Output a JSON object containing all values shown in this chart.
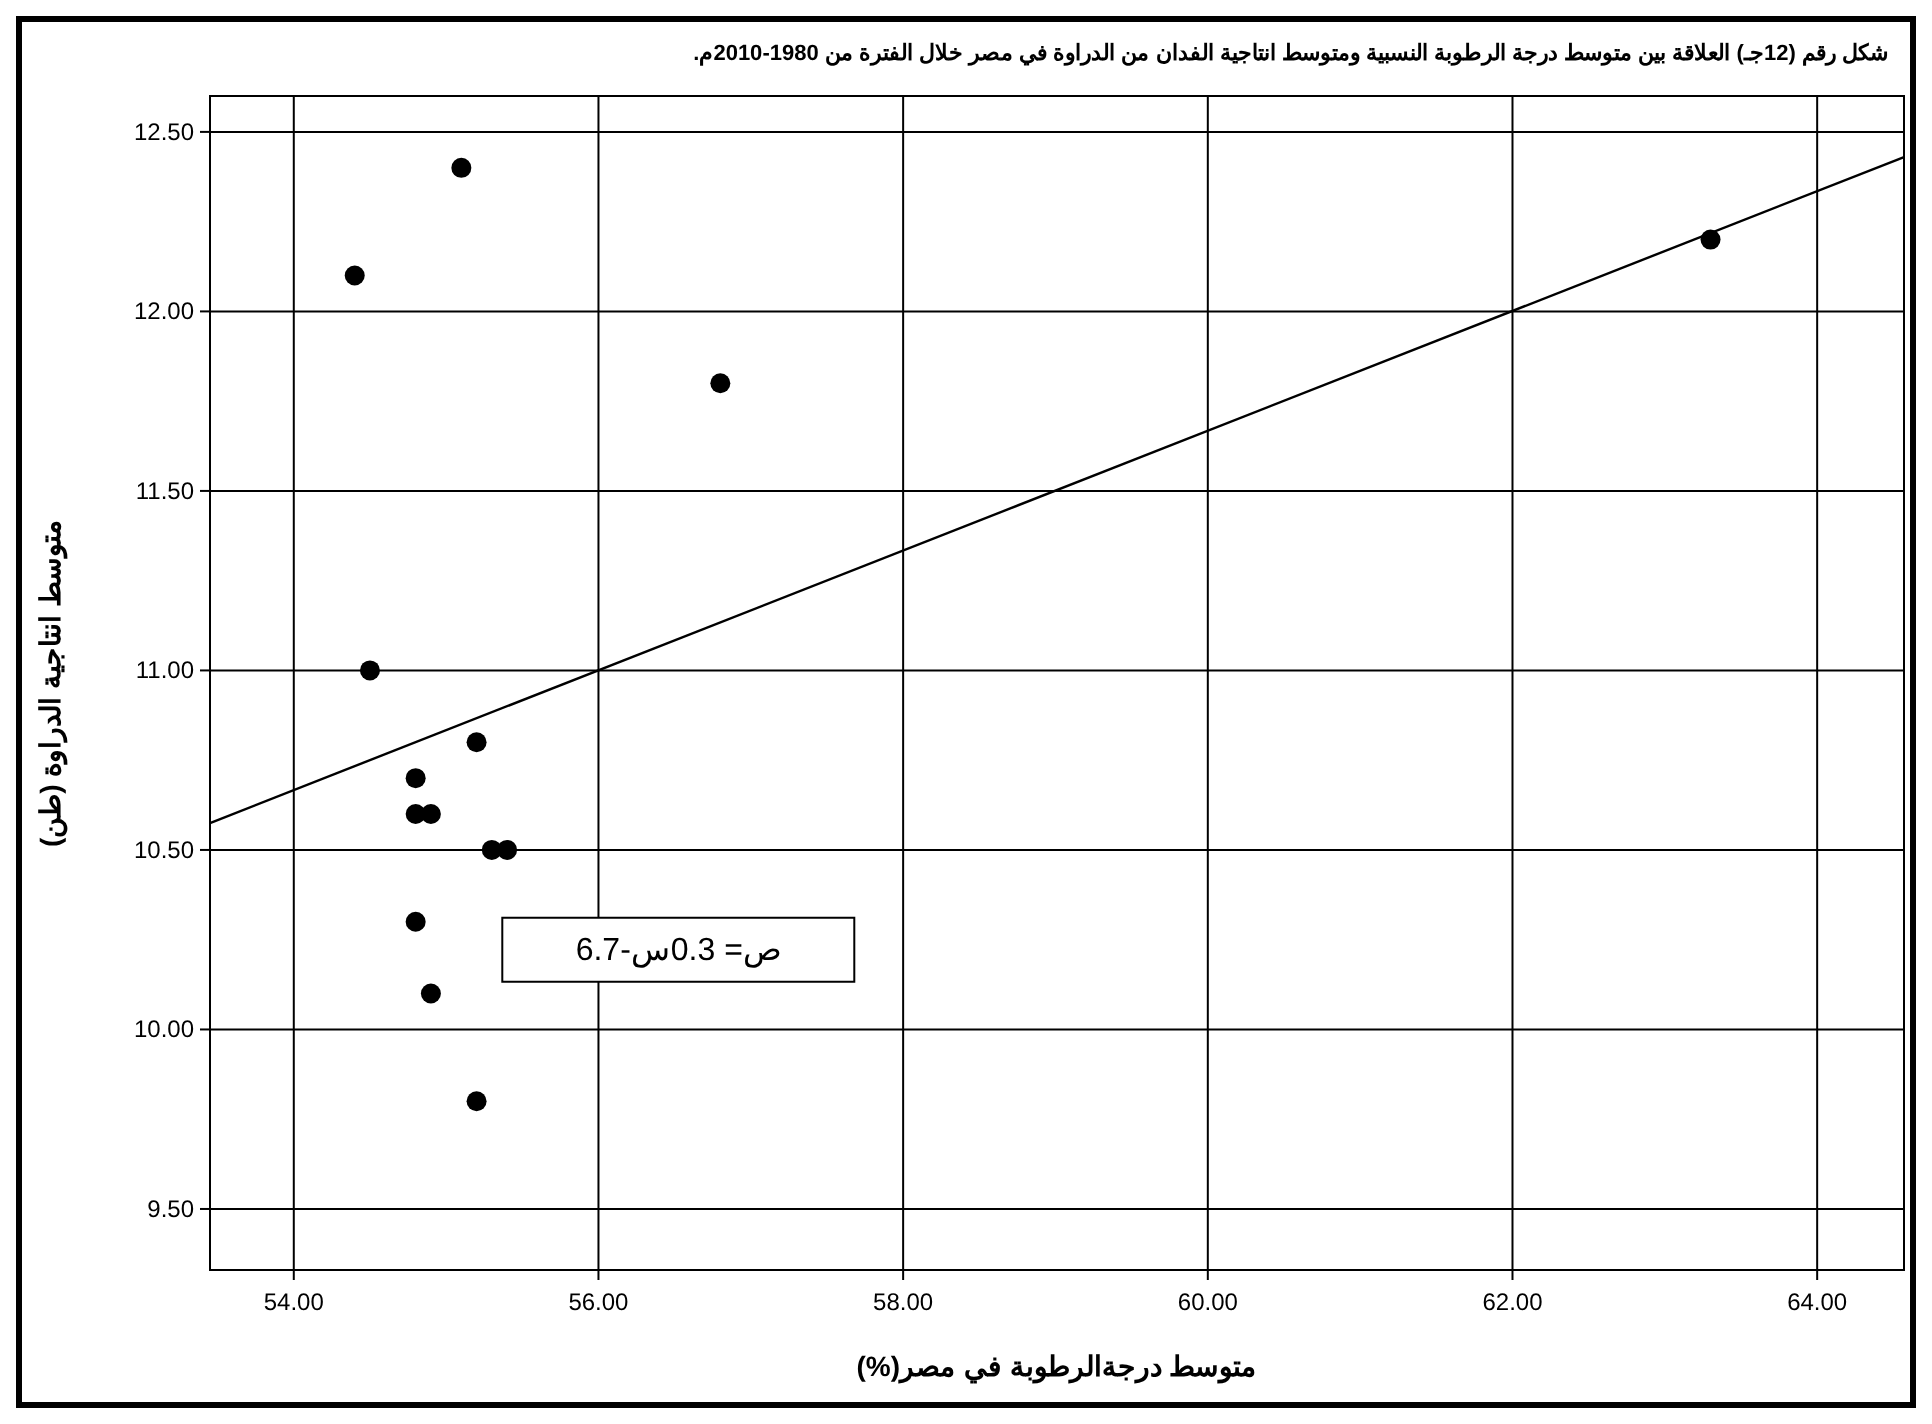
{
  "chart_data": {
    "type": "scatter",
    "title": "شكل رقم (12جـ) العلاقة بين متوسط درجة  الرطوبة النسبية ومتوسط انتاجية الفدان من الدراوة في مصر خلال الفترة من 1980-2010م.",
    "xlabel": "متوسط درجةالرطوبة في مصر(%)",
    "ylabel": "متوسط  انتاجية الدراوة (طن)",
    "annotations": [
      "ص= 0.3س-6.7"
    ],
    "xlim": [
      53.45,
      64.57
    ],
    "xticks": [
      {
        "value": 54,
        "label": "54.00"
      },
      {
        "value": 56,
        "label": "56.00"
      },
      {
        "value": 58,
        "label": "58.00"
      },
      {
        "value": 60,
        "label": "60.00"
      },
      {
        "value": 62,
        "label": "62.00"
      },
      {
        "value": 64,
        "label": "64.00"
      }
    ],
    "ylim": [
      9.33,
      12.6
    ],
    "yticks": [
      {
        "value": 9.5,
        "label": "9.50"
      },
      {
        "value": 10,
        "label": "10.00"
      },
      {
        "value": 10.5,
        "label": "10.50"
      },
      {
        "value": 11,
        "label": "11.00"
      },
      {
        "value": 11.5,
        "label": "11.50"
      },
      {
        "value": 12,
        "label": "12.00"
      },
      {
        "value": 12.5,
        "label": "12.50"
      }
    ],
    "grid": true,
    "marker": "circle",
    "series": [
      {
        "color": "#000000",
        "x": [
          55.1,
          54.4,
          56.8,
          63.3,
          54.5,
          55.2,
          54.8,
          54.8,
          54.9,
          55.3,
          55.4,
          54.8,
          54.9,
          55.2
        ],
        "values": [
          12.4,
          12.1,
          11.8,
          12.2,
          11.0,
          10.8,
          10.7,
          10.6,
          10.6,
          10.5,
          10.5,
          10.3,
          10.1,
          9.8
        ]
      },
      {
        "type": "line",
        "color": "#000000",
        "marker": "none",
        "x": [
          53.45,
          64.57
        ],
        "values": [
          10.575,
          12.43
        ]
      }
    ]
  }
}
